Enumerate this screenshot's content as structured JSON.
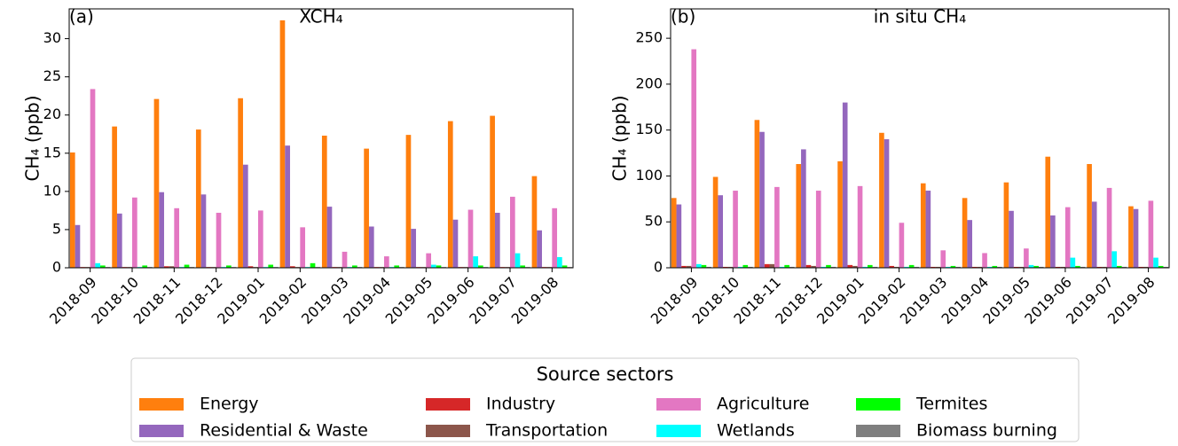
{
  "legend_title": "Source sectors",
  "chart_data": [
    {
      "type": "bar",
      "panel_label": "(a)",
      "title": "XCH₄",
      "y_label": "CH₄ (ppb)",
      "categories": [
        "2018-09",
        "2018-10",
        "2018-11",
        "2018-12",
        "2019-01",
        "2019-02",
        "2019-03",
        "2019-04",
        "2019-05",
        "2019-06",
        "2019-07",
        "2019-08"
      ],
      "ylim": [
        0,
        33.9
      ],
      "yticks": [
        0,
        5,
        10,
        15,
        20,
        25,
        30
      ],
      "series": [
        {
          "name": "Energy",
          "color": "#ff7f0e",
          "values": [
            15.1,
            18.5,
            22.1,
            18.1,
            22.2,
            32.4,
            17.3,
            15.6,
            17.4,
            19.2,
            19.9,
            12.0
          ]
        },
        {
          "name": "Residential & Waste",
          "color": "#9467bd",
          "values": [
            5.6,
            7.1,
            9.9,
            9.6,
            13.5,
            16.0,
            8.0,
            5.4,
            5.1,
            6.3,
            7.2,
            4.9
          ]
        },
        {
          "name": "Industry",
          "color": "#d62728",
          "values": [
            0.1,
            0.1,
            0.2,
            0.1,
            0.2,
            0.2,
            0.1,
            0.1,
            0.1,
            0.1,
            0.1,
            0.1
          ]
        },
        {
          "name": "Transportation",
          "color": "#8c564b",
          "values": [
            0.1,
            0.1,
            0.2,
            0.1,
            0.1,
            0.1,
            0.1,
            0.1,
            0.1,
            0.1,
            0.1,
            0.1
          ]
        },
        {
          "name": "Agriculture",
          "color": "#e377c2",
          "values": [
            23.4,
            9.2,
            7.8,
            7.2,
            7.5,
            5.3,
            2.1,
            1.5,
            1.9,
            7.6,
            9.3,
            7.8
          ]
        },
        {
          "name": "Wetlands",
          "color": "#00ffff",
          "values": [
            0.6,
            0.1,
            0.1,
            0.1,
            0.1,
            0.1,
            0.1,
            0.1,
            0.4,
            1.5,
            1.9,
            1.4
          ]
        },
        {
          "name": "Termites",
          "color": "#00ff00",
          "values": [
            0.3,
            0.3,
            0.4,
            0.3,
            0.4,
            0.6,
            0.3,
            0.3,
            0.3,
            0.3,
            0.3,
            0.3
          ]
        },
        {
          "name": "Biomass burning",
          "color": "#7f7f7f",
          "values": [
            0.1,
            0.1,
            0.1,
            0.1,
            0.1,
            0.1,
            0.1,
            0.1,
            0.1,
            0.1,
            0.1,
            0.1
          ]
        }
      ]
    },
    {
      "type": "bar",
      "panel_label": "(b)",
      "title": "in situ CH₄",
      "y_label": "CH₄ (ppb)",
      "categories": [
        "2018-09",
        "2018-10",
        "2018-11",
        "2018-12",
        "2019-01",
        "2019-02",
        "2019-03",
        "2019-04",
        "2019-05",
        "2019-06",
        "2019-07",
        "2019-08"
      ],
      "ylim": [
        0,
        282
      ],
      "yticks": [
        0,
        50,
        100,
        150,
        200,
        250
      ],
      "series": [
        {
          "name": "Energy",
          "color": "#ff7f0e",
          "values": [
            76,
            99,
            161,
            113,
            116,
            147,
            92,
            76,
            93,
            121,
            113,
            67
          ]
        },
        {
          "name": "Residential & Waste",
          "color": "#9467bd",
          "values": [
            69,
            79,
            148,
            129,
            180,
            140,
            84,
            52,
            62,
            57,
            72,
            64
          ]
        },
        {
          "name": "Industry",
          "color": "#d62728",
          "values": [
            2,
            1,
            4,
            3,
            3,
            2,
            1,
            1,
            1,
            1,
            1,
            1
          ]
        },
        {
          "name": "Transportation",
          "color": "#8c564b",
          "values": [
            2,
            1,
            4,
            2,
            2,
            1,
            1,
            1,
            1,
            1,
            1,
            1
          ]
        },
        {
          "name": "Agriculture",
          "color": "#e377c2",
          "values": [
            238,
            84,
            88,
            84,
            89,
            49,
            19,
            16,
            21,
            66,
            87,
            73
          ]
        },
        {
          "name": "Wetlands",
          "color": "#00ffff",
          "values": [
            4,
            1,
            1,
            1,
            1,
            1,
            1,
            1,
            3,
            11,
            18,
            11
          ]
        },
        {
          "name": "Termites",
          "color": "#00ff00",
          "values": [
            3,
            3,
            3,
            3,
            3,
            3,
            2,
            2,
            2,
            2,
            2,
            2
          ]
        },
        {
          "name": "Biomass burning",
          "color": "#7f7f7f",
          "values": [
            1,
            1,
            1,
            1,
            1,
            1,
            1,
            1,
            1,
            1,
            1,
            1
          ]
        }
      ]
    }
  ]
}
